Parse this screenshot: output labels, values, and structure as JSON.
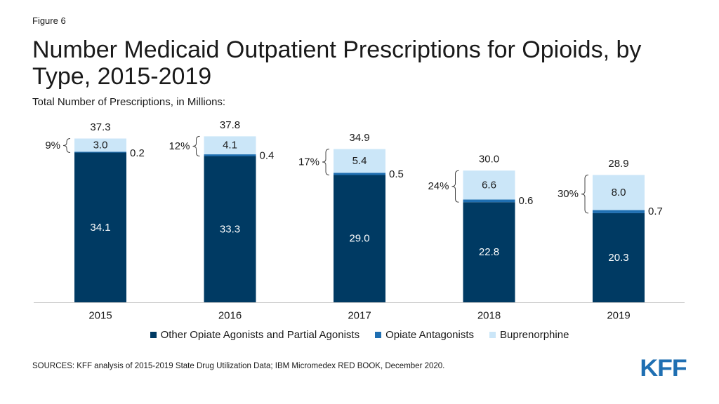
{
  "figure_label": "Figure 6",
  "title": "Number Medicaid Outpatient Prescriptions for Opioids, by Type, 2015-2019",
  "subtitle": "Total Number of Prescriptions, in Millions:",
  "source": "SOURCES: KFF analysis of 2015-2019 State Drug Utilization Data; IBM Micromedex RED BOOK, December 2020.",
  "logo_text": "KFF",
  "colors": {
    "other_opiate": "#003a63",
    "antagonists": "#1f6fb2",
    "buprenorphine": "#cbe6f8"
  },
  "chart_data": {
    "type": "bar",
    "stacked": true,
    "categories": [
      "2015",
      "2016",
      "2017",
      "2018",
      "2019"
    ],
    "series": [
      {
        "name": "Other Opiate Agonists and Partial Agonists",
        "values": [
          34.1,
          33.3,
          29.0,
          22.8,
          20.3
        ],
        "labels": [
          "34.1",
          "33.3",
          "29.0",
          "22.8",
          "20.3"
        ]
      },
      {
        "name": "Opiate Antagonists",
        "values": [
          0.2,
          0.4,
          0.5,
          0.6,
          0.7
        ],
        "labels": [
          "0.2",
          "0.4",
          "0.5",
          "0.6",
          "0.7"
        ]
      },
      {
        "name": "Buprenorphine",
        "values": [
          3.0,
          4.1,
          5.4,
          6.6,
          8.0
        ],
        "labels": [
          "3.0",
          "4.1",
          "5.4",
          "6.6",
          "8.0"
        ]
      }
    ],
    "totals": [
      "37.3",
      "37.8",
      "34.9",
      "30.0",
      "28.9"
    ],
    "bracket_shares": [
      "9%",
      "12%",
      "17%",
      "24%",
      "30%"
    ],
    "ylim": [
      0,
      40
    ],
    "grid": false,
    "legend_position": "bottom"
  }
}
